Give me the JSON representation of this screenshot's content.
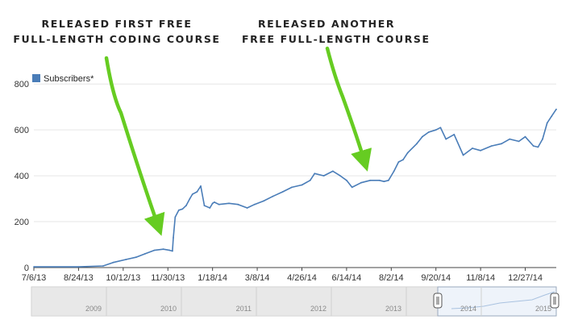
{
  "annotations": [
    {
      "lines": [
        "RELEASED FIRST FREE",
        "FULL-LENGTH CODING COURSE"
      ]
    },
    {
      "lines": [
        "RELEASED ANOTHER",
        "FREE FULL-LENGTH COURSE"
      ]
    }
  ],
  "colors": {
    "line": "#4a7db8",
    "arrow": "#66cc22",
    "grid": "#e6e6e6",
    "axis": "#444444",
    "nav_bg": "#eef3fa"
  },
  "chart_data": {
    "type": "line",
    "title": "",
    "xlabel": "",
    "ylabel": "",
    "ylim": [
      0,
      850
    ],
    "grid": true,
    "legend": "top-left",
    "x_ticks": [
      "7/6/13",
      "8/24/13",
      "10/12/13",
      "11/30/13",
      "1/18/14",
      "3/8/14",
      "4/26/14",
      "6/14/14",
      "8/2/14",
      "9/20/14",
      "11/8/14",
      "12/27/14"
    ],
    "y_ticks": [
      0,
      200,
      400,
      600,
      800
    ],
    "series": [
      {
        "name": "Subscribers*",
        "x": [
          "2013-07-06",
          "2013-08-24",
          "2013-09-20",
          "2013-10-01",
          "2013-10-15",
          "2013-10-26",
          "2013-11-05",
          "2013-11-15",
          "2013-11-25",
          "2013-12-02",
          "2013-12-05",
          "2013-12-06",
          "2013-12-08",
          "2013-12-12",
          "2013-12-16",
          "2013-12-20",
          "2013-12-24",
          "2013-12-27",
          "2014-01-01",
          "2014-01-05",
          "2014-01-09",
          "2014-01-15",
          "2014-01-18",
          "2014-01-20",
          "2014-01-25",
          "2014-02-05",
          "2014-02-15",
          "2014-02-25",
          "2014-03-05",
          "2014-03-15",
          "2014-03-25",
          "2014-04-05",
          "2014-04-15",
          "2014-04-26",
          "2014-05-05",
          "2014-05-10",
          "2014-05-20",
          "2014-05-30",
          "2014-06-07",
          "2014-06-14",
          "2014-06-20",
          "2014-06-30",
          "2014-07-10",
          "2014-07-20",
          "2014-07-25",
          "2014-07-30",
          "2014-08-05",
          "2014-08-10",
          "2014-08-15",
          "2014-08-20",
          "2014-08-30",
          "2014-09-05",
          "2014-09-12",
          "2014-09-20",
          "2014-09-25",
          "2014-10-01",
          "2014-10-10",
          "2014-10-20",
          "2014-10-30",
          "2014-11-08",
          "2014-11-20",
          "2014-12-01",
          "2014-12-10",
          "2014-12-20",
          "2014-12-27",
          "2015-01-05",
          "2015-01-10",
          "2015-01-15",
          "2015-01-20",
          "2015-01-25",
          "2015-01-30"
        ],
        "values": [
          3,
          3,
          7,
          22,
          35,
          45,
          60,
          75,
          80,
          75,
          72,
          130,
          220,
          250,
          255,
          270,
          300,
          320,
          330,
          355,
          270,
          260,
          280,
          285,
          275,
          280,
          275,
          260,
          275,
          290,
          310,
          330,
          350,
          360,
          380,
          410,
          400,
          420,
          400,
          380,
          350,
          370,
          380,
          380,
          375,
          380,
          420,
          460,
          470,
          500,
          540,
          570,
          590,
          600,
          610,
          560,
          580,
          490,
          520,
          510,
          530,
          540,
          560,
          550,
          570,
          530,
          525,
          560,
          630,
          660,
          690
        ]
      }
    ]
  },
  "navigator": {
    "year_labels": [
      "2009",
      "2010",
      "2011",
      "2012",
      "2013",
      "2014",
      "2015"
    ]
  }
}
